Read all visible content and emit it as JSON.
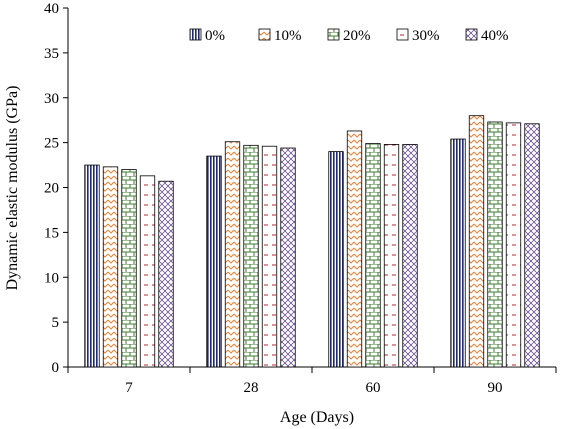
{
  "chart_data": {
    "type": "bar",
    "title": "",
    "xlabel": "Age (Days)",
    "ylabel": "Dynamic elastic modulus (GPa)",
    "ylim": [
      0,
      40
    ],
    "yticks": [
      0,
      5,
      10,
      15,
      20,
      25,
      30,
      35,
      40
    ],
    "categories": [
      "7",
      "28",
      "60",
      "90"
    ],
    "legend_position": "top-right",
    "grid": false,
    "series": [
      {
        "name": "0%",
        "values": [
          22.5,
          23.5,
          24.0,
          25.4
        ],
        "color": "#1f2a6b",
        "pattern": "vertical-lines"
      },
      {
        "name": "10%",
        "values": [
          22.3,
          25.1,
          26.3,
          28.0
        ],
        "color": "#e8823a",
        "pattern": "zigzag"
      },
      {
        "name": "20%",
        "values": [
          22.0,
          24.7,
          24.9,
          27.3
        ],
        "color": "#3e7f2e",
        "pattern": "brick"
      },
      {
        "name": "30%",
        "values": [
          21.3,
          24.6,
          24.8,
          27.2
        ],
        "color": "#b01020",
        "pattern": "dashed-horizontal"
      },
      {
        "name": "40%",
        "values": [
          20.7,
          24.4,
          24.8,
          27.1
        ],
        "color": "#5a3a8a",
        "pattern": "diagonal-cross"
      }
    ]
  }
}
